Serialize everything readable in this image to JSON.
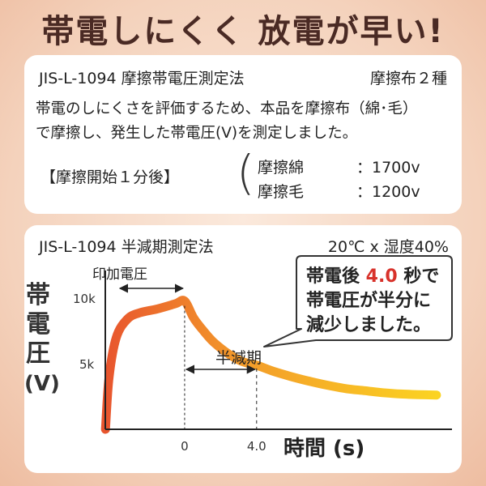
{
  "headline": "帯電しにくく 放電が早い!",
  "friction_test": {
    "method": "JIS-L-1094 摩擦帯電圧測定法",
    "cloth": "摩擦布２種",
    "description_line1": "帯電のしにくさを評価するため、本品を摩擦布（綿･毛）",
    "description_line2": "で摩擦し、発生した帯電圧(V)を測定しました。",
    "timing_label": "【摩擦開始１分後】",
    "paren": "(",
    "results": [
      {
        "material": "摩擦綿",
        "value": "：1700v"
      },
      {
        "material": "摩擦毛",
        "value": "：1200v"
      }
    ]
  },
  "half_life_test": {
    "method": "JIS-L-1094 半減期測定法",
    "conditions": "20℃ x 湿度40%",
    "bubble": {
      "line1_before": "帯電後 ",
      "line1_value": "4.0",
      "line1_after": " 秒で",
      "line2": "帯電圧が半分に",
      "line3": "減少しました。"
    }
  },
  "chart_data": {
    "type": "area",
    "title": "",
    "ylabel_chars": [
      "帯",
      "電",
      "圧",
      "(V)"
    ],
    "xlabel": "時間 (s)",
    "y_ticks": [
      {
        "label": "10k",
        "value": 10000
      },
      {
        "label": "5k",
        "value": 5000
      }
    ],
    "x_ticks": [
      {
        "label": "0",
        "value": 0
      },
      {
        "label": "4.0",
        "value": 4.0
      }
    ],
    "annotations": {
      "applied_voltage": "印加電圧",
      "half_life": "半減期"
    },
    "x_range": [
      -4.5,
      14.5
    ],
    "y_range": [
      0,
      12500
    ],
    "series": [
      {
        "x": [
          -4.4,
          -4.2,
          -3.8,
          -3.2,
          -2.5,
          -1.5,
          -0.5,
          0,
          0.5,
          1,
          1.5,
          2,
          2.5,
          3,
          3.5,
          4,
          5,
          6,
          7,
          8,
          9,
          10,
          11,
          12,
          13,
          14
        ],
        "values": [
          0,
          4000,
          7000,
          8400,
          8900,
          9200,
          9600,
          9800,
          8500,
          7600,
          6800,
          6200,
          5700,
          5300,
          5050,
          4900,
          4400,
          4000,
          3650,
          3350,
          3100,
          2950,
          2800,
          2700,
          2650,
          2620
        ]
      }
    ],
    "colors": {
      "start": "#e8552e",
      "end": "#fbd322",
      "axis": "#222222"
    }
  }
}
